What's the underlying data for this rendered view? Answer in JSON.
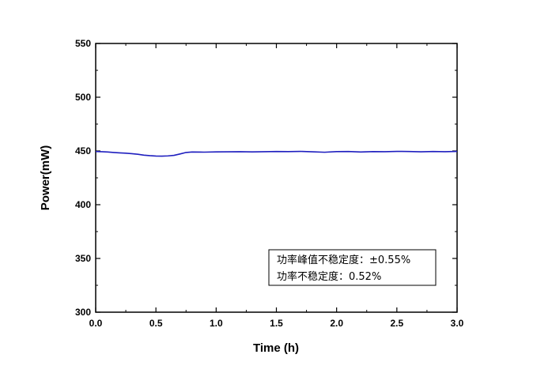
{
  "chart_data": {
    "type": "line",
    "title": "",
    "xlabel": "Time (h)",
    "ylabel": "Power(mW)",
    "xlim": [
      0.0,
      3.0
    ],
    "ylim": [
      300,
      550
    ],
    "x_ticks": [
      "0.0",
      "0.5",
      "1.0",
      "1.5",
      "2.0",
      "2.5",
      "3.0"
    ],
    "y_ticks": [
      "300",
      "350",
      "400",
      "450",
      "500",
      "550"
    ],
    "grid": false,
    "legend": "none",
    "series": [
      {
        "color": "#1f1fbf",
        "x": [
          0.0,
          0.05,
          0.1,
          0.15,
          0.2,
          0.25,
          0.3,
          0.35,
          0.4,
          0.45,
          0.5,
          0.55,
          0.6,
          0.65,
          0.7,
          0.75,
          0.8,
          0.9,
          1.0,
          1.1,
          1.2,
          1.3,
          1.4,
          1.5,
          1.6,
          1.7,
          1.8,
          1.9,
          2.0,
          2.1,
          2.2,
          2.3,
          2.4,
          2.5,
          2.6,
          2.7,
          2.8,
          2.9,
          3.0
        ],
        "y": [
          449.5,
          449.3,
          449.0,
          448.6,
          448.2,
          447.9,
          447.5,
          446.9,
          446.1,
          445.6,
          445.3,
          445.2,
          445.4,
          445.9,
          447.2,
          448.6,
          449.0,
          448.9,
          449.1,
          449.2,
          449.3,
          449.1,
          449.3,
          449.5,
          449.4,
          449.6,
          449.2,
          448.8,
          449.4,
          449.5,
          449.0,
          449.4,
          449.3,
          449.6,
          449.5,
          449.2,
          449.5,
          449.3,
          449.6
        ]
      }
    ],
    "annotations": [
      "功率峰值不稳定度：±0.55%",
      "功率不稳定度：0.52%"
    ]
  }
}
